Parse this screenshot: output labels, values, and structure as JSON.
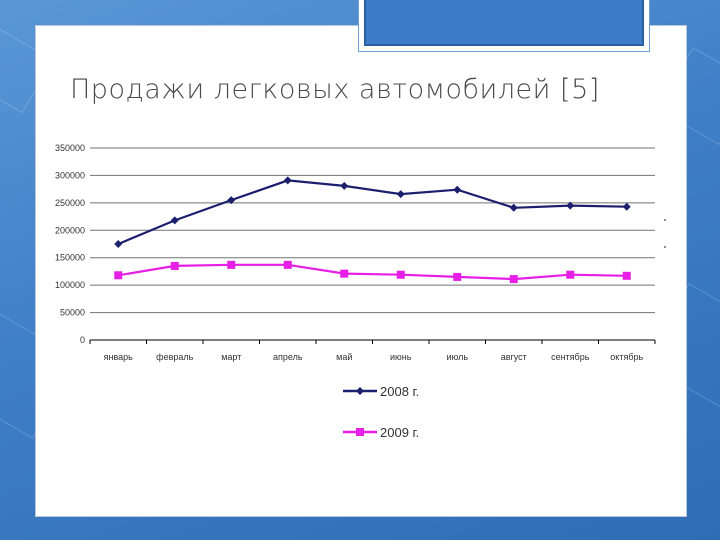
{
  "slide": {
    "title": "Продажи легковых автомобилей [5]"
  },
  "colors": {
    "series_2008": "#1c1f6e",
    "series_2009": "#e61ee6",
    "grid": "#000000"
  },
  "chart_data": {
    "type": "line",
    "title": "",
    "xlabel": "",
    "ylabel": "",
    "categories": [
      "январь",
      "февраль",
      "март",
      "апрель",
      "май",
      "июнь",
      "июль",
      "август",
      "сентябрь",
      "октябрь"
    ],
    "y_ticks": [
      "0",
      "50000",
      "100000",
      "150000",
      "200000",
      "250000",
      "300000",
      "350000"
    ],
    "ylim": [
      0,
      350000
    ],
    "grid": true,
    "legend_placement": "bottom",
    "series": [
      {
        "name": "2008 г.",
        "marker": "diamond",
        "values": [
          175000,
          218000,
          255000,
          291000,
          281000,
          266000,
          274000,
          241000,
          245000,
          243000
        ]
      },
      {
        "name": "2009 г.",
        "marker": "square",
        "values": [
          118000,
          135000,
          137000,
          137000,
          121000,
          119000,
          115000,
          111000,
          119000,
          117000
        ]
      }
    ]
  }
}
